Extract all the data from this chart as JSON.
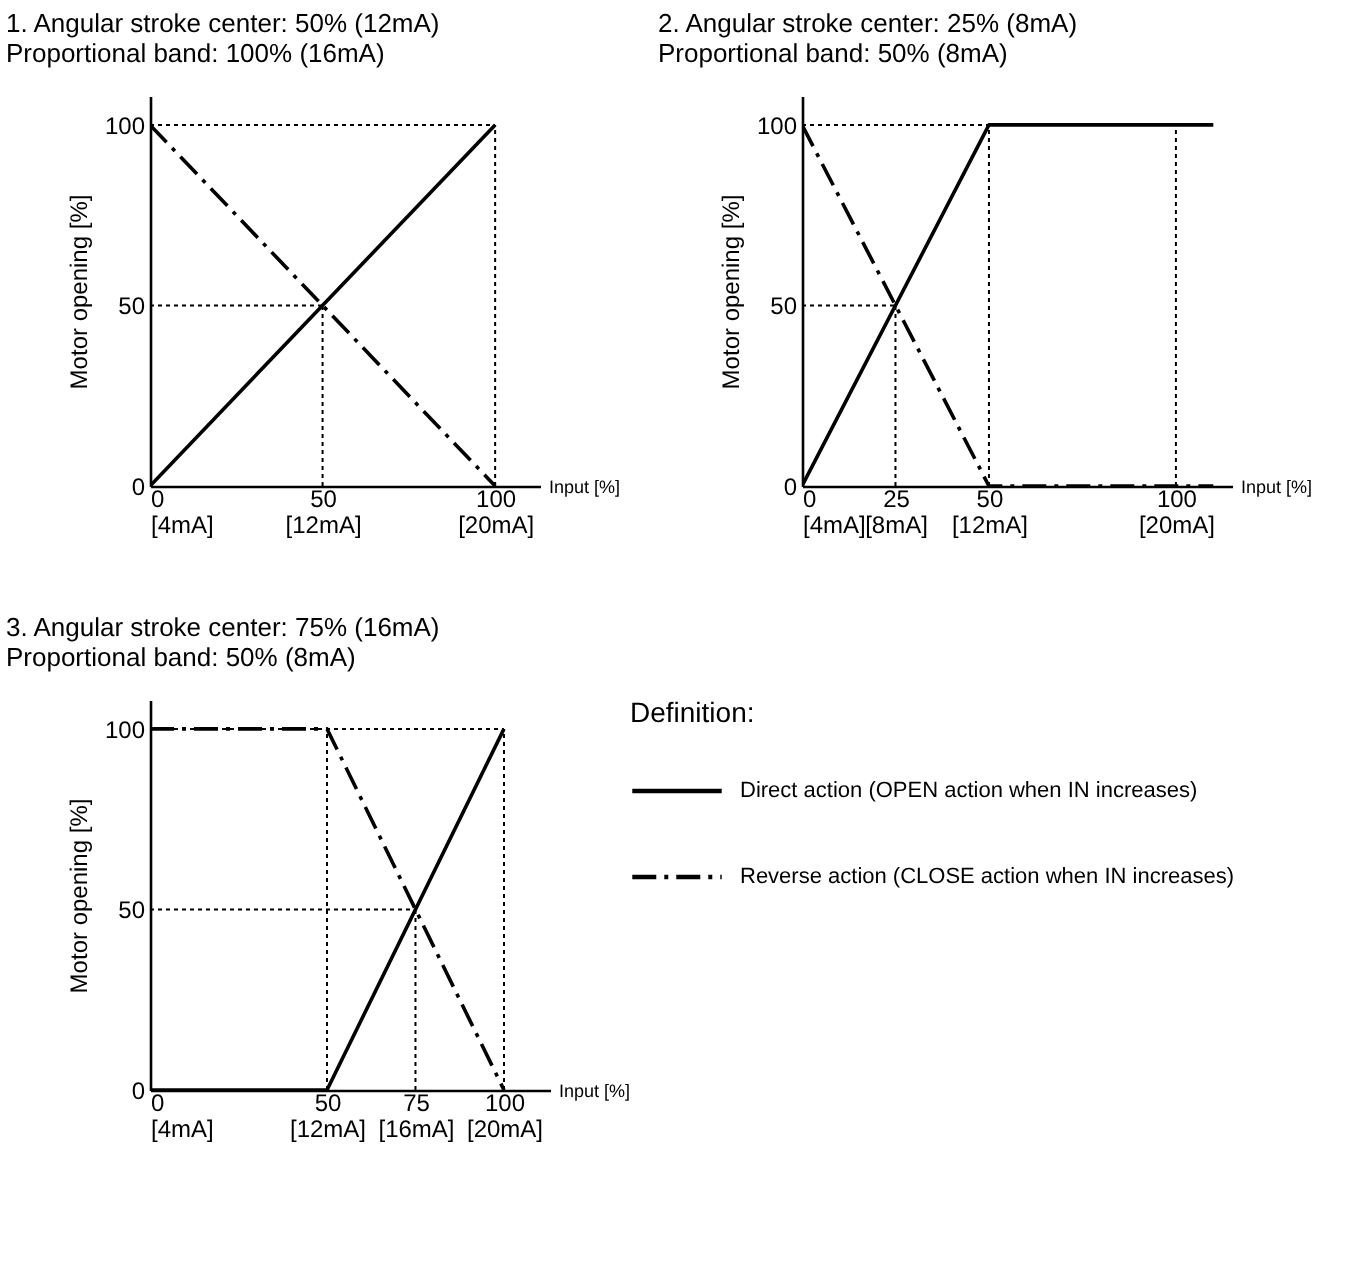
{
  "chart_data": [
    {
      "type": "line",
      "title": "1. Angular stroke center: 50% (12mA)",
      "subtitle": "Proportional band: 100% (16mA)",
      "xlabel": "Input [%]",
      "ylabel": "Motor opening [%]",
      "xlim": [
        0,
        113
      ],
      "ylim": [
        0,
        108
      ],
      "xticks": [
        0,
        50,
        100
      ],
      "yticks": [
        0,
        50,
        100
      ],
      "x2lim": [
        4,
        22.08
      ],
      "x2ticks": [
        {
          "value": 4,
          "label": "[4mA]"
        },
        {
          "value": 12,
          "label": "[12mA]"
        },
        {
          "value": 20,
          "label": "[20mA]"
        }
      ],
      "grid": false,
      "legend": false,
      "series": [
        {
          "color": "#000000",
          "line_style": "solid",
          "x": [
            0,
            100
          ],
          "values": [
            0,
            100
          ]
        },
        {
          "color": "#000000",
          "line_style": "dashed",
          "x": [
            0,
            100
          ],
          "values": [
            100,
            0
          ]
        }
      ],
      "ref_lines": [
        {
          "axis": "y",
          "value": 100,
          "color": "#000000",
          "line_style": "dotted"
        },
        {
          "axis": "y",
          "value": 50,
          "color": "#000000",
          "line_style": "dotted"
        },
        {
          "axis": "x",
          "value": 50,
          "color": "#000000",
          "line_style": "dotted"
        },
        {
          "axis": "x",
          "value": 100,
          "color": "#000000",
          "line_style": "dotted"
        }
      ]
    },
    {
      "type": "line",
      "title": "2. Angular stroke center: 25% (8mA)",
      "subtitle": "Proportional band: 50% (8mA)",
      "xlabel": "Input [%]",
      "ylabel": "Motor opening [%]",
      "xlim": [
        0,
        115
      ],
      "ylim": [
        0,
        108
      ],
      "xticks": [
        0,
        25,
        50,
        100
      ],
      "yticks": [
        0,
        50,
        100
      ],
      "x2lim": [
        4,
        22.4
      ],
      "x2ticks": [
        {
          "value": 4,
          "label": "[4mA]"
        },
        {
          "value": 8,
          "label": "[8mA]"
        },
        {
          "value": 12,
          "label": "[12mA]"
        },
        {
          "value": 20,
          "label": "[20mA]"
        }
      ],
      "grid": false,
      "legend": false,
      "series": [
        {
          "color": "#000000",
          "line_style": "solid",
          "x": [
            0,
            50,
            110
          ],
          "values": [
            0,
            100,
            100
          ]
        },
        {
          "color": "#000000",
          "line_style": "dashed",
          "x": [
            0,
            50,
            110
          ],
          "values": [
            100,
            0,
            0
          ]
        }
      ],
      "ref_lines": [
        {
          "axis": "y",
          "value": 100,
          "color": "#000000",
          "line_style": "dotted"
        },
        {
          "axis": "y",
          "value": 50,
          "color": "#000000",
          "line_style": "dotted"
        },
        {
          "axis": "x",
          "value": 25,
          "color": "#000000",
          "line_style": "dotted"
        },
        {
          "axis": "x",
          "value": 50,
          "color": "#000000",
          "line_style": "dotted"
        },
        {
          "axis": "x",
          "value": 100,
          "color": "#000000",
          "line_style": "dotted"
        }
      ]
    },
    {
      "type": "line",
      "title": "3. Angular stroke center: 75% (16mA)",
      "subtitle": "Proportional band: 50% (8mA)",
      "xlabel": "Input [%]",
      "ylabel": "Motor opening [%]",
      "xlim": [
        0,
        113
      ],
      "ylim": [
        0,
        108
      ],
      "xticks": [
        0,
        50,
        75,
        100
      ],
      "yticks": [
        0,
        50,
        100
      ],
      "x2lim": [
        4,
        22.08
      ],
      "x2ticks": [
        {
          "value": 4,
          "label": "[4mA]"
        },
        {
          "value": 12,
          "label": "[12mA]"
        },
        {
          "value": 16,
          "label": "[16mA]"
        },
        {
          "value": 20,
          "label": "[20mA]"
        }
      ],
      "grid": false,
      "legend": "right",
      "legend_title": "Definition:",
      "series": [
        {
          "name": "Direct action (OPEN action when IN increases)",
          "color": "#000000",
          "line_style": "solid",
          "x": [
            0,
            50,
            100
          ],
          "values": [
            0,
            0,
            100
          ]
        },
        {
          "name": "Reverse action (CLOSE action when IN increases)",
          "color": "#000000",
          "line_style": "dashed",
          "x": [
            0,
            50,
            100
          ],
          "values": [
            100,
            100,
            0
          ]
        }
      ],
      "ref_lines": [
        {
          "axis": "y",
          "value": 100,
          "color": "#000000",
          "line_style": "dotted"
        },
        {
          "axis": "y",
          "value": 50,
          "color": "#000000",
          "line_style": "dotted"
        },
        {
          "axis": "x",
          "value": 50,
          "color": "#000000",
          "line_style": "dotted"
        },
        {
          "axis": "x",
          "value": 75,
          "color": "#000000",
          "line_style": "dotted"
        },
        {
          "axis": "x",
          "value": 100,
          "color": "#000000",
          "line_style": "dotted"
        }
      ]
    }
  ]
}
